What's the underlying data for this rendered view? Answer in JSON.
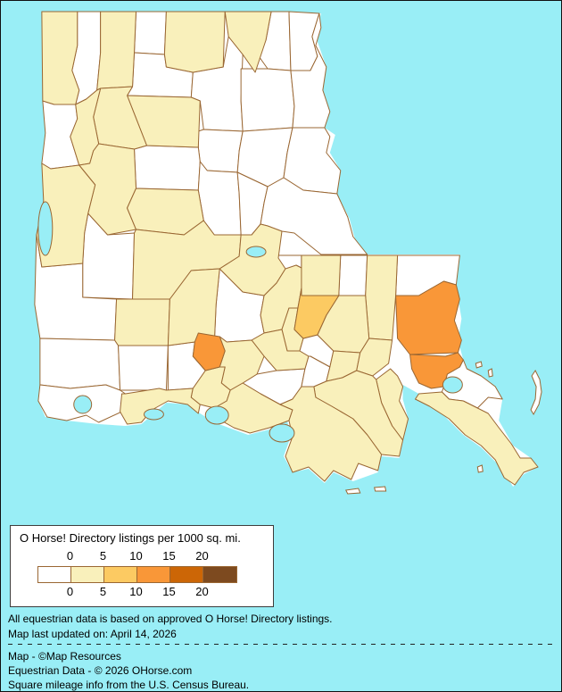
{
  "map": {
    "water_color": "#99EEF6",
    "border_color": "#9A6733",
    "bands": {
      "b0": "#FFFFFF",
      "b1": "#F9F0BB",
      "b2": "#FCCA62",
      "b3": "#F99738",
      "b4": "#CC6606",
      "b5": "#7D4A1F"
    },
    "parishes": {
      "caddo": "b1",
      "bossier": "b0",
      "webster": "b1",
      "claiborne": "b0",
      "union": "b1",
      "morehouse": "b1",
      "west_carroll": "b0",
      "east_carroll": "b0",
      "lincoln": "b0",
      "ouachita": "b0",
      "richland": "b0",
      "madison": "b0",
      "jackson": "b1",
      "bienville": "b1",
      "red_river": "b1",
      "de_soto": "b0",
      "caldwell": "b0",
      "franklin": "b0",
      "tensas": "b0",
      "winn": "b0",
      "natchitoches": "b1",
      "grant": "b1",
      "la_salle": "b0",
      "catahoula": "b0",
      "concordia": "b0",
      "sabine": "b1",
      "vernon": "b0",
      "rapides": "b1",
      "avoyelles": "b1",
      "beauregard": "b0",
      "allen": "b1",
      "evangeline": "b1",
      "st_landry": "b0",
      "pointe_coupee": "b1",
      "west_feliciana": "b0",
      "east_feliciana": "b1",
      "st_helena": "b0",
      "tangipahoa": "b1",
      "washington": "b0",
      "st_tammany": "b3",
      "livingston": "b1",
      "east_baton_rouge": "b2",
      "west_baton_rouge": "b1",
      "iberville": "b1",
      "ascension": "b0",
      "calcasieu": "b0",
      "jefferson_davis": "b0",
      "acadia": "b0",
      "lafayette": "b3",
      "st_martin": "b1",
      "cameron": "b0",
      "vermilion": "b1",
      "iberia": "b1",
      "st_mary": "b1",
      "assumption": "b0",
      "st_james": "b0",
      "st_john_the_baptist": "b1",
      "st_charles": "b1",
      "jefferson": "b1",
      "orleans": "b3",
      "st_bernard": "b0",
      "plaquemines": "b1",
      "lafourche": "b1",
      "terrebonne": "b1"
    }
  },
  "legend": {
    "title": "O Horse! Directory listings per 1000 sq. mi.",
    "tick_labels": [
      "0",
      "5",
      "10",
      "15",
      "20"
    ],
    "swatches": [
      "b0",
      "b1",
      "b2",
      "b3",
      "b4",
      "b5"
    ]
  },
  "notes": {
    "line1": "All equestrian data is based on approved O Horse! Directory listings.",
    "line2": "Map last updated on: April 14, 2026"
  },
  "credits": {
    "line1": "Map - ©Map Resources",
    "line2": "Equestrian Data - © 2026 OHorse.com",
    "line3": "Square mileage info from the U.S. Census Bureau."
  }
}
